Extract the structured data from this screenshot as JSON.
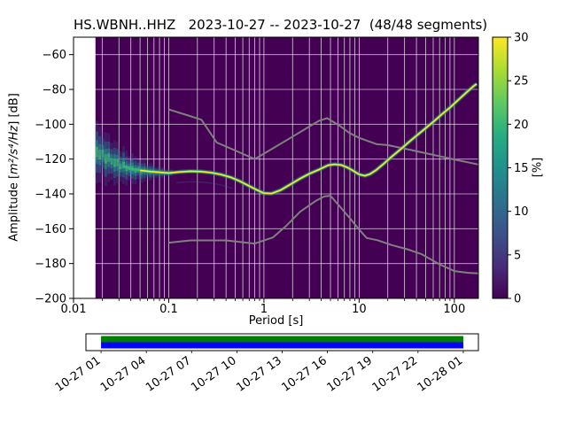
{
  "chart_data": {
    "type": "heatmap",
    "variant": "seismic-ppsd",
    "title": "HS.WBNH..HHZ   2023-10-27 -- 2023-10-27  (48/48 segments)",
    "xlabel": "Period [s]",
    "ylabel_prefix": "Amplitude [",
    "ylabel_math": "m²/s⁴/Hz",
    "ylabel_suffix": "] [dB]",
    "x_scale": "log",
    "xlim": [
      0.01,
      179
    ],
    "ylim": [
      -200,
      -50
    ],
    "xticks": [
      0.01,
      0.1,
      1,
      10,
      100
    ],
    "xtick_labels": [
      "0.01",
      "0.1",
      "1",
      "10",
      "100"
    ],
    "yticks": [
      -60,
      -80,
      -100,
      -120,
      -140,
      -160,
      -180,
      -200
    ],
    "ytick_labels": [
      "−60",
      "−80",
      "−100",
      "−120",
      "−140",
      "−160",
      "−180",
      "−200"
    ],
    "grid_color": "#ffffff",
    "histogram": {
      "period_min": 0.017,
      "period_max": 179,
      "background_color": "#440154"
    },
    "colorbar": {
      "label": "[%]",
      "min": 0,
      "max": 30,
      "ticks": [
        0,
        5,
        10,
        15,
        20,
        25,
        30
      ],
      "colormap": "viridis",
      "stops": [
        "#440154",
        "#472d7b",
        "#3b528b",
        "#2c728e",
        "#21918c",
        "#27ad81",
        "#5ec962",
        "#aadc32",
        "#fde725"
      ]
    },
    "line_colors": {
      "core": "#fde725",
      "mid": "#35b779",
      "glow": "#21918c",
      "secondary": "#2c728e"
    },
    "psd_mode_curve": {
      "periods": [
        0.018,
        0.022,
        0.027,
        0.033,
        0.04,
        0.05,
        0.065,
        0.08,
        0.1,
        0.13,
        0.17,
        0.22,
        0.28,
        0.35,
        0.45,
        0.55,
        0.7,
        0.85,
        1.0,
        1.2,
        1.5,
        1.9,
        2.4,
        3.0,
        3.8,
        4.7,
        5.5,
        6.5,
        7.5,
        8.5,
        10,
        11.5,
        13,
        15,
        18,
        22,
        27,
        33,
        40,
        50,
        62,
        75,
        90,
        110,
        135,
        160,
        172
      ],
      "db": [
        -116,
        -119,
        -122,
        -124,
        -125.5,
        -126.5,
        -127.2,
        -127.6,
        -128,
        -127.4,
        -127,
        -127.2,
        -127.8,
        -128.8,
        -130.5,
        -132.5,
        -135.5,
        -137.8,
        -139.6,
        -139.8,
        -137.8,
        -134.5,
        -131.2,
        -128.4,
        -126,
        -123.6,
        -123,
        -123.4,
        -124.8,
        -126.4,
        -128.8,
        -129.6,
        -128.6,
        -126.4,
        -122.8,
        -118.6,
        -114.6,
        -110.4,
        -106.6,
        -102.2,
        -98,
        -94,
        -90.4,
        -86,
        -81.6,
        -78,
        -76.8
      ]
    },
    "short_period_cloud": {
      "period_min": 0.017,
      "period_max": 0.11,
      "max_spread_db": 13.5,
      "min_spread_db": 1.6
    },
    "noise_models": {
      "color": "#808080",
      "high": {
        "periods": [
          0.1,
          0.15,
          0.22,
          0.32,
          0.5,
          0.8,
          1.2,
          2.0,
          3.0,
          3.8,
          4.6,
          6.3,
          7.9,
          10,
          15.4,
          20,
          35,
          60,
          100,
          179
        ],
        "db": [
          -91.5,
          -94.5,
          -97.4,
          -110.5,
          -115.1,
          -120,
          -114.3,
          -107.1,
          -101.3,
          -98,
          -96.5,
          -101,
          -105,
          -107.8,
          -111.5,
          -112,
          -114.8,
          -117.6,
          -120.2,
          -123.1
        ]
      },
      "low": {
        "periods": [
          0.1,
          0.17,
          0.4,
          0.8,
          1.24,
          1.7,
          2.4,
          3.5,
          4.3,
          5.0,
          6.0,
          8.0,
          10,
          12,
          15.6,
          22,
          32,
          45,
          70,
          101,
          140,
          179
        ],
        "db": [
          -168,
          -166.7,
          -166.7,
          -168.5,
          -165,
          -158.5,
          -150.2,
          -144,
          -141.5,
          -141,
          -146,
          -154,
          -160.5,
          -165.3,
          -166.6,
          -169.4,
          -171.8,
          -174.5,
          -180.5,
          -184.4,
          -185.3,
          -185.6
        ]
      }
    },
    "timeline": {
      "tick_labels": [
        "10-27 01",
        "10-27 04",
        "10-27 07",
        "10-27 10",
        "10-27 13",
        "10-27 16",
        "10-27 19",
        "10-27 22",
        "10-28 01"
      ],
      "top_color": "#008000",
      "bottom_color": "#0000ff",
      "coverage_start_frac": 0.0385,
      "coverage_end_frac": 0.9615
    }
  }
}
